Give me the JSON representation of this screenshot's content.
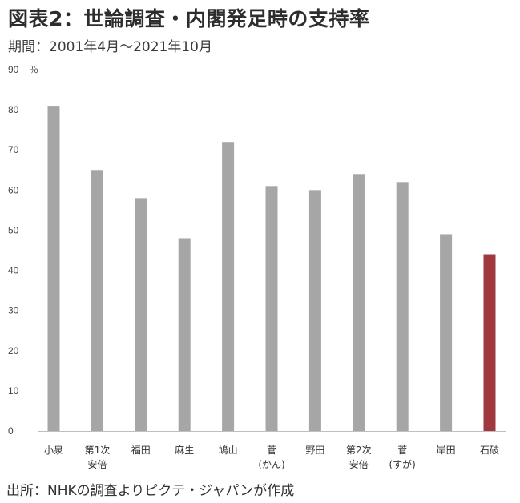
{
  "figure": {
    "title": "図表2：世論調査・内閣発足時の支持率",
    "subtitle": "期間：2001年4月～2021年10月",
    "source": "出所：NHKの調査よりピクテ・ジャパンが作成"
  },
  "chart_data": {
    "type": "bar",
    "title": "図表2：世論調査・内閣発足時の支持率",
    "subtitle": "期間：2001年4月～2021年10月",
    "unit": "％",
    "ylabel": "",
    "xlabel": "",
    "ylim": [
      0,
      90
    ],
    "yticks": [
      0,
      10,
      20,
      30,
      40,
      50,
      60,
      70,
      80,
      90
    ],
    "grid": false,
    "categories": [
      [
        "小泉"
      ],
      [
        "第1次",
        "安倍"
      ],
      [
        "福田"
      ],
      [
        "麻生"
      ],
      [
        "鳩山"
      ],
      [
        "菅",
        "(かん)"
      ],
      [
        "野田"
      ],
      [
        "第2次",
        "安倍"
      ],
      [
        "菅",
        "(すが)"
      ],
      [
        "岸田"
      ],
      [
        "石破"
      ]
    ],
    "values": [
      81,
      65,
      58,
      48,
      72,
      61,
      60,
      64,
      62,
      49,
      44
    ],
    "colors": {
      "default": "#a6a6a6",
      "highlight": "#a0393d"
    },
    "highlight_index": 10
  }
}
